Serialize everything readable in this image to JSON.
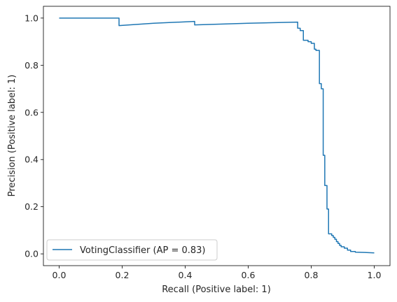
{
  "chart_data": {
    "type": "line",
    "step": "post",
    "xlabel": "Recall (Positive label: 1)",
    "ylabel": "Precision (Positive label: 1)",
    "xlim": [
      -0.05,
      1.05
    ],
    "ylim": [
      -0.05,
      1.05
    ],
    "xticks": [
      0.0,
      0.2,
      0.4,
      0.6,
      0.8,
      1.0
    ],
    "yticks": [
      0.0,
      0.2,
      0.4,
      0.6,
      0.8,
      1.0
    ],
    "xtick_labels": [
      "0.0",
      "0.2",
      "0.4",
      "0.6",
      "0.8",
      "1.0"
    ],
    "ytick_labels": [
      "0.0",
      "0.2",
      "0.4",
      "0.6",
      "0.8",
      "1.0"
    ],
    "grid": false,
    "legend_position": "lower-left",
    "series": [
      {
        "name": "VotingClassifier (AP = 0.83)",
        "color": "#1f77b4",
        "points": [
          [
            0.0,
            1.0
          ],
          [
            0.19,
            1.0
          ],
          [
            0.19,
            0.968
          ],
          [
            0.3,
            0.978
          ],
          [
            0.43,
            0.986
          ],
          [
            0.43,
            0.971
          ],
          [
            0.6,
            0.978
          ],
          [
            0.757,
            0.983
          ],
          [
            0.757,
            0.957
          ],
          [
            0.765,
            0.957
          ],
          [
            0.765,
            0.947
          ],
          [
            0.775,
            0.947
          ],
          [
            0.775,
            0.906
          ],
          [
            0.79,
            0.906
          ],
          [
            0.79,
            0.9
          ],
          [
            0.8,
            0.9
          ],
          [
            0.8,
            0.893
          ],
          [
            0.81,
            0.893
          ],
          [
            0.81,
            0.868
          ],
          [
            0.815,
            0.868
          ],
          [
            0.815,
            0.863
          ],
          [
            0.826,
            0.863
          ],
          [
            0.826,
            0.722
          ],
          [
            0.832,
            0.722
          ],
          [
            0.832,
            0.7
          ],
          [
            0.838,
            0.7
          ],
          [
            0.838,
            0.418
          ],
          [
            0.843,
            0.418
          ],
          [
            0.843,
            0.29
          ],
          [
            0.85,
            0.29
          ],
          [
            0.85,
            0.19
          ],
          [
            0.855,
            0.19
          ],
          [
            0.855,
            0.085
          ],
          [
            0.865,
            0.085
          ],
          [
            0.865,
            0.078
          ],
          [
            0.87,
            0.078
          ],
          [
            0.87,
            0.07
          ],
          [
            0.875,
            0.07
          ],
          [
            0.875,
            0.062
          ],
          [
            0.88,
            0.062
          ],
          [
            0.88,
            0.052
          ],
          [
            0.885,
            0.052
          ],
          [
            0.885,
            0.044
          ],
          [
            0.89,
            0.044
          ],
          [
            0.89,
            0.036
          ],
          [
            0.895,
            0.036
          ],
          [
            0.895,
            0.03
          ],
          [
            0.905,
            0.03
          ],
          [
            0.905,
            0.024
          ],
          [
            0.915,
            0.024
          ],
          [
            0.915,
            0.016
          ],
          [
            0.925,
            0.016
          ],
          [
            0.925,
            0.01
          ],
          [
            0.94,
            0.01
          ],
          [
            0.94,
            0.007
          ],
          [
            0.97,
            0.006
          ],
          [
            1.0,
            0.004
          ]
        ]
      }
    ]
  }
}
